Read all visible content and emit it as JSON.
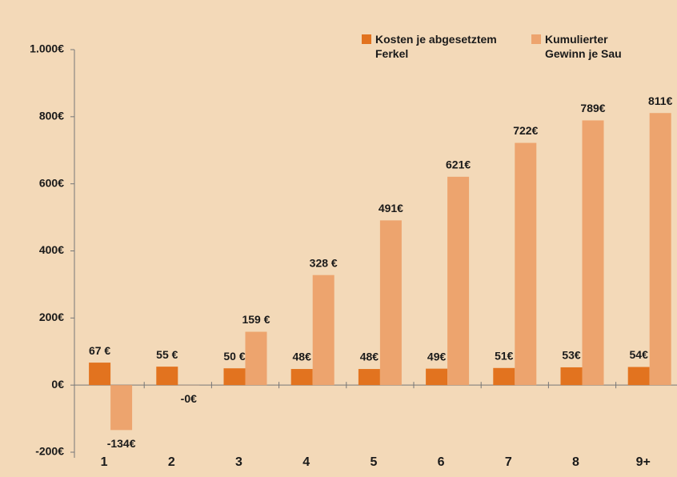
{
  "chart_data": {
    "type": "bar",
    "categories": [
      "1",
      "2",
      "3",
      "4",
      "5",
      "6",
      "7",
      "8",
      "9+"
    ],
    "series": [
      {
        "name": "Kosten je abgesetztem Ferkel",
        "color": "#e2731f",
        "values": [
          67,
          55,
          50,
          48,
          48,
          49,
          51,
          53,
          54
        ],
        "value_labels": [
          "67 €",
          "55 €",
          "50 €",
          "48€",
          "48€",
          "49€",
          "51€",
          "53€",
          "54€"
        ]
      },
      {
        "name": "Kumulierter Gewinn je Sau",
        "color": "#eda46e",
        "values": [
          -134,
          -0.4,
          159,
          328,
          491,
          621,
          722,
          789,
          811
        ],
        "value_labels": [
          "-134€",
          "-0€",
          "159 €",
          "328 €",
          "491€",
          "621€",
          "722€",
          "789€",
          "811€"
        ]
      }
    ],
    "ylim": [
      -200,
      1000
    ],
    "yticks": [
      {
        "value": -200,
        "label": "-200€"
      },
      {
        "value": 0,
        "label": "0€"
      },
      {
        "value": 200,
        "label": "200€"
      },
      {
        "value": 400,
        "label": "400€"
      },
      {
        "value": 600,
        "label": "600€"
      },
      {
        "value": 800,
        "label": "800€"
      },
      {
        "value": 1000,
        "label": "1.000€"
      }
    ],
    "grid": false,
    "legend": "top-right",
    "negative_label_color": "#c0272d"
  }
}
